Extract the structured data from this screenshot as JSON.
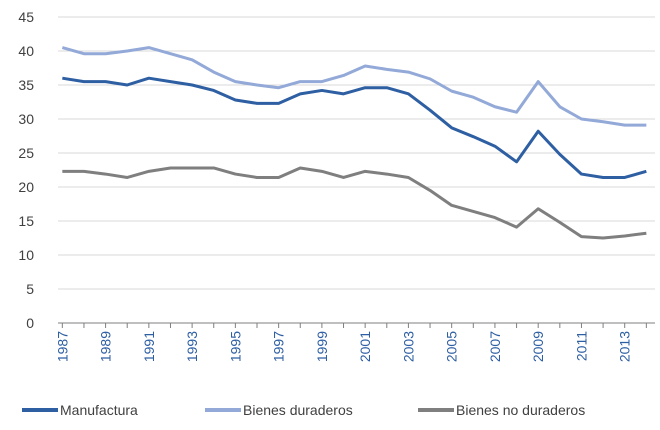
{
  "chart_data": {
    "type": "line",
    "x": [
      1987,
      1988,
      1989,
      1990,
      1991,
      1992,
      1993,
      1994,
      1995,
      1996,
      1997,
      1998,
      1999,
      2000,
      2001,
      2002,
      2003,
      2004,
      2005,
      2006,
      2007,
      2008,
      2009,
      2010,
      2011,
      2012,
      2013,
      2014
    ],
    "xlim": [
      1986.8,
      2014.4
    ],
    "xticks": [
      1987,
      1989,
      1991,
      1993,
      1995,
      1997,
      1999,
      2001,
      2003,
      2005,
      2007,
      2009,
      2011,
      2013
    ],
    "ylim": [
      0,
      45
    ],
    "yticks": [
      0,
      5,
      10,
      15,
      20,
      25,
      30,
      35,
      40,
      45
    ],
    "grid": true,
    "legend": "bottom",
    "series": [
      {
        "name": "Manufactura",
        "color": "#2e5fa3",
        "values": [
          36,
          35.5,
          35.5,
          35,
          36,
          35.5,
          35,
          34.2,
          32.8,
          32.3,
          32.3,
          33.7,
          34.2,
          33.7,
          34.6,
          34.6,
          33.7,
          31.3,
          28.7,
          27.4,
          26,
          23.7,
          28.2,
          24.8,
          21.9,
          21.4,
          21.4,
          22.3
        ]
      },
      {
        "name": "Bienes duraderos",
        "color": "#93a9d8",
        "values": [
          40.5,
          39.6,
          39.6,
          40,
          40.5,
          39.6,
          38.7,
          36.9,
          35.5,
          35,
          34.6,
          35.5,
          35.5,
          36.4,
          37.8,
          37.3,
          36.9,
          35.9,
          34.1,
          33.2,
          31.8,
          31,
          35.5,
          31.8,
          30,
          29.6,
          29.1,
          29.1
        ]
      },
      {
        "name": "Bienes no duraderos",
        "color": "#7f7f7f",
        "values": [
          22.3,
          22.3,
          21.9,
          21.4,
          22.3,
          22.8,
          22.8,
          22.8,
          21.9,
          21.4,
          21.4,
          22.8,
          22.3,
          21.4,
          22.3,
          21.9,
          21.4,
          19.5,
          17.3,
          16.4,
          15.5,
          14.1,
          16.8,
          14.8,
          12.7,
          12.5,
          12.8,
          13.2
        ]
      }
    ]
  }
}
